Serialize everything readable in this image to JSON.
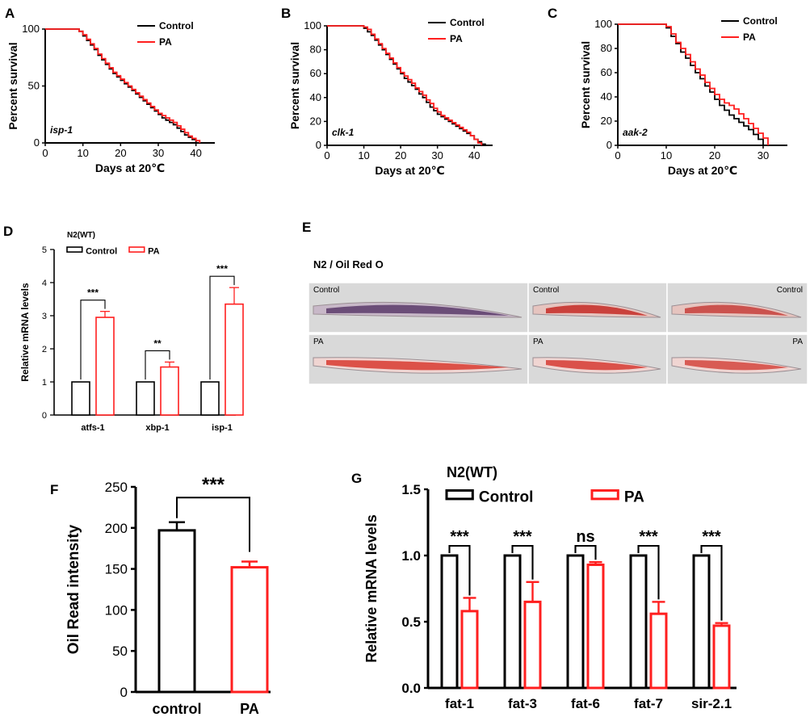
{
  "figure": {
    "panel_labels": [
      "A",
      "B",
      "C",
      "D",
      "E",
      "F",
      "G"
    ]
  },
  "colors": {
    "control": "#000000",
    "pa": "#ff1f1f",
    "axis": "#000000",
    "worm_bg": "#d9d9d9"
  },
  "chart_data": [
    {
      "panel": "A",
      "type": "line",
      "title": "",
      "xlabel": "Days at 20℃",
      "ylabel": "Percent survival",
      "xlim": [
        0,
        45
      ],
      "ylim": [
        0,
        100
      ],
      "xticks": [
        0,
        10,
        20,
        30,
        40
      ],
      "yticks": [
        0,
        50,
        100
      ],
      "annotation": "isp-1",
      "legend": [
        "Control",
        "PA"
      ],
      "series": [
        {
          "name": "Control",
          "x": [
            0,
            8,
            9,
            10,
            11,
            12,
            13,
            14,
            15,
            16,
            17,
            18,
            19,
            20,
            21,
            22,
            23,
            24,
            25,
            26,
            27,
            28,
            29,
            30,
            31,
            32,
            33,
            34,
            35,
            36,
            37,
            38,
            39,
            40
          ],
          "y": [
            100,
            100,
            98,
            94,
            90,
            86,
            82,
            77,
            73,
            69,
            65,
            61,
            58,
            55,
            52,
            49,
            46,
            43,
            40,
            37,
            34,
            31,
            28,
            25,
            22,
            20,
            18,
            16,
            13,
            10,
            7,
            5,
            3,
            0
          ]
        },
        {
          "name": "PA",
          "x": [
            0,
            8,
            9,
            10,
            11,
            12,
            13,
            14,
            15,
            16,
            17,
            18,
            19,
            20,
            21,
            22,
            23,
            24,
            25,
            26,
            27,
            28,
            29,
            30,
            31,
            32,
            33,
            34,
            35,
            36,
            37,
            38,
            39,
            40,
            41
          ],
          "y": [
            100,
            100,
            98,
            95,
            91,
            87,
            83,
            78,
            74,
            70,
            66,
            62,
            59,
            56,
            53,
            50,
            47,
            44,
            41,
            38,
            35,
            32,
            29,
            26,
            24,
            22,
            20,
            18,
            15,
            12,
            9,
            6,
            4,
            2,
            0
          ]
        }
      ]
    },
    {
      "panel": "B",
      "type": "line",
      "title": "",
      "xlabel": "Days at 20℃",
      "ylabel": "Percent survival",
      "xlim": [
        0,
        45
      ],
      "ylim": [
        0,
        100
      ],
      "xticks": [
        0,
        10,
        20,
        30,
        40
      ],
      "yticks": [
        0,
        20,
        40,
        60,
        80,
        100
      ],
      "annotation": "clk-1",
      "legend": [
        "Control",
        "PA"
      ],
      "series": [
        {
          "name": "Control",
          "x": [
            0,
            9,
            10,
            11,
            12,
            13,
            14,
            15,
            16,
            17,
            18,
            19,
            20,
            21,
            22,
            23,
            24,
            25,
            26,
            27,
            28,
            29,
            30,
            31,
            32,
            33,
            34,
            35,
            36,
            37,
            38,
            39,
            40,
            41,
            42,
            43
          ],
          "y": [
            100,
            100,
            98,
            95,
            92,
            88,
            84,
            80,
            76,
            72,
            68,
            64,
            60,
            56,
            53,
            50,
            47,
            43,
            40,
            36,
            32,
            29,
            26,
            24,
            22,
            20,
            18,
            16,
            14,
            12,
            10,
            8,
            5,
            3,
            1,
            0
          ]
        },
        {
          "name": "PA",
          "x": [
            0,
            9,
            10,
            11,
            12,
            13,
            14,
            15,
            16,
            17,
            18,
            19,
            20,
            21,
            22,
            23,
            24,
            25,
            26,
            27,
            28,
            29,
            30,
            31,
            32,
            33,
            34,
            35,
            36,
            37,
            38,
            39,
            40,
            41,
            42
          ],
          "y": [
            100,
            100,
            99,
            97,
            93,
            89,
            85,
            81,
            77,
            73,
            69,
            65,
            61,
            58,
            55,
            52,
            48,
            45,
            42,
            38,
            35,
            31,
            28,
            25,
            23,
            21,
            19,
            17,
            15,
            13,
            11,
            8,
            5,
            2,
            0
          ]
        }
      ]
    },
    {
      "panel": "C",
      "type": "line",
      "title": "",
      "xlabel": "Days at 20℃",
      "ylabel": "Percent survival",
      "xlim": [
        0,
        35
      ],
      "ylim": [
        0,
        100
      ],
      "xticks": [
        0,
        10,
        20,
        30
      ],
      "yticks": [
        0,
        20,
        40,
        60,
        80,
        100
      ],
      "annotation": "aak-2",
      "legend": [
        "Control",
        "PA"
      ],
      "series": [
        {
          "name": "Control",
          "x": [
            0,
            9,
            10,
            11,
            12,
            13,
            14,
            15,
            16,
            17,
            18,
            19,
            20,
            21,
            22,
            23,
            24,
            25,
            26,
            27,
            28,
            29,
            30
          ],
          "y": [
            100,
            100,
            97,
            90,
            84,
            77,
            72,
            66,
            60,
            55,
            49,
            44,
            38,
            33,
            29,
            25,
            22,
            19,
            16,
            13,
            9,
            5,
            0
          ]
        },
        {
          "name": "PA",
          "x": [
            0,
            9,
            10,
            11,
            12,
            13,
            14,
            15,
            16,
            17,
            18,
            19,
            20,
            21,
            22,
            23,
            24,
            25,
            26,
            27,
            28,
            29,
            30,
            31
          ],
          "y": [
            100,
            100,
            98,
            92,
            85,
            80,
            75,
            69,
            63,
            58,
            52,
            47,
            42,
            38,
            35,
            33,
            30,
            26,
            22,
            18,
            14,
            10,
            6,
            0
          ]
        }
      ]
    },
    {
      "panel": "D",
      "type": "bar",
      "title": "",
      "group_title": "N2(WT)",
      "categories": [
        "atfs-1",
        "xbp-1",
        "isp-1"
      ],
      "series": [
        {
          "name": "Control",
          "values": [
            1,
            1,
            1
          ],
          "errors": [
            0,
            0,
            0
          ]
        },
        {
          "name": "PA",
          "values": [
            2.95,
            1.45,
            3.35
          ],
          "errors": [
            0.18,
            0.15,
            0.5
          ]
        }
      ],
      "significance": [
        "***",
        "**",
        "***"
      ],
      "xlabel": "",
      "ylabel": "Relative mRNA levels",
      "ylim": [
        0,
        5
      ],
      "yticks": [
        0,
        1,
        2,
        3,
        4,
        5
      ]
    },
    {
      "panel": "E",
      "type": "table",
      "title": "N2 / Oil  Red  O",
      "images": [
        {
          "group": "Control",
          "label": "Control"
        },
        {
          "group": "Control",
          "label": "Control"
        },
        {
          "group": "Control",
          "label": "Control"
        },
        {
          "group": "PA",
          "label": "PA"
        },
        {
          "group": "PA",
          "label": "PA"
        },
        {
          "group": "PA",
          "label": "PA"
        }
      ]
    },
    {
      "panel": "F",
      "type": "bar",
      "title": "",
      "categories": [
        "control",
        "PA"
      ],
      "values": [
        197,
        152
      ],
      "errors": [
        10,
        7
      ],
      "significance": "***",
      "xlabel": "",
      "ylabel": "Oil Read intensity",
      "ylim": [
        0,
        250
      ],
      "yticks": [
        0,
        50,
        100,
        150,
        200,
        250
      ]
    },
    {
      "panel": "G",
      "type": "bar",
      "title": "",
      "group_title": "N2(WT)",
      "categories": [
        "fat-1",
        "fat-3",
        "fat-6",
        "fat-7",
        "sir-2.1"
      ],
      "series": [
        {
          "name": "Control",
          "values": [
            1,
            1,
            1,
            1,
            1
          ],
          "errors": [
            0,
            0,
            0,
            0,
            0
          ]
        },
        {
          "name": "PA",
          "values": [
            0.58,
            0.65,
            0.93,
            0.56,
            0.47
          ],
          "errors": [
            0.1,
            0.15,
            0.02,
            0.09,
            0.02
          ]
        }
      ],
      "significance": [
        "***",
        "***",
        "ns",
        "***",
        "***"
      ],
      "xlabel": "",
      "ylabel": "Relative mRNA levels",
      "ylim": [
        0,
        1.5
      ],
      "yticks": [
        0.0,
        0.5,
        1.0,
        1.5
      ]
    }
  ]
}
